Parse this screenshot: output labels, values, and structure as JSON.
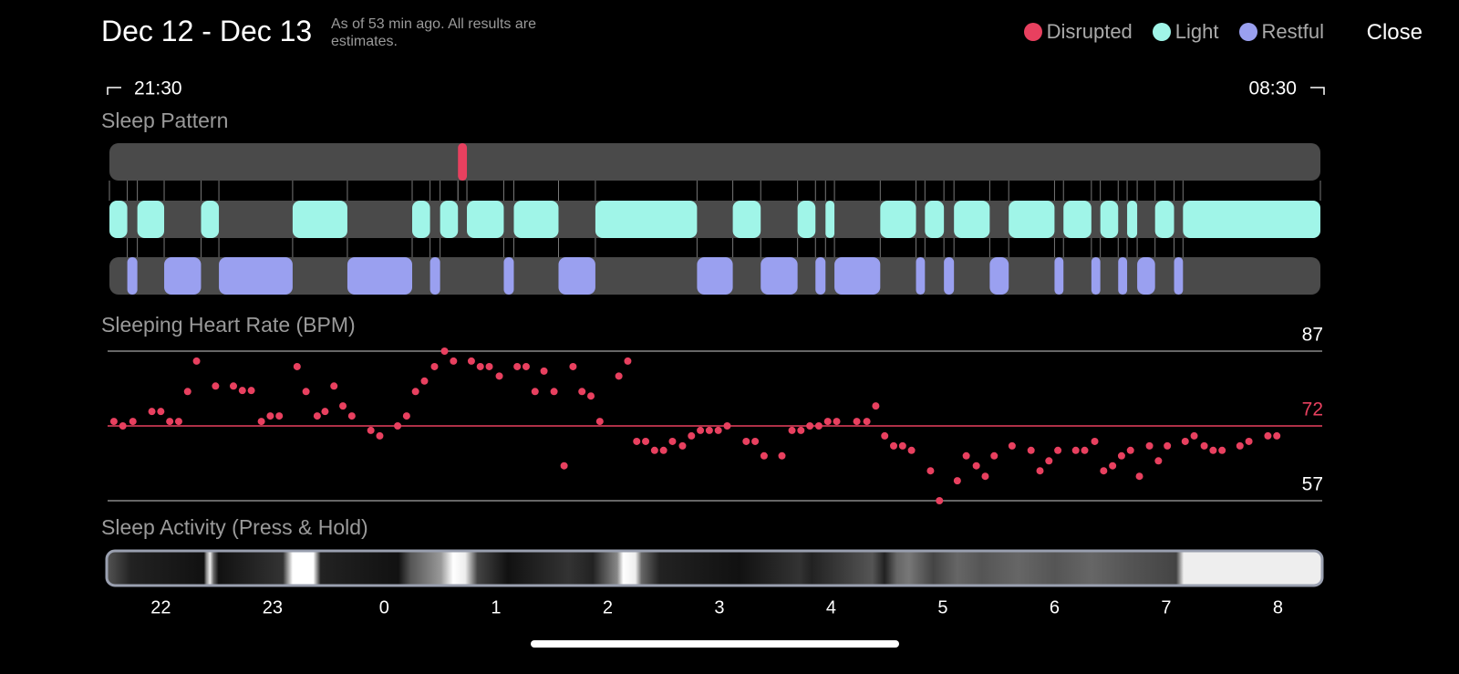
{
  "header": {
    "title": "Dec 12 - Dec 13",
    "subtitle": "As of 53 min ago. All results are estimates.",
    "close": "Close"
  },
  "time_range": {
    "start": "21:30",
    "end": "08:30"
  },
  "xlim": [
    21.54,
    32.38
  ],
  "xticks": [
    22,
    23,
    {
      "value": 24,
      "label": "0"
    },
    {
      "value": 25,
      "label": "1"
    },
    {
      "value": 26,
      "label": "2"
    },
    {
      "value": 27,
      "label": "3"
    },
    {
      "value": 28,
      "label": "4"
    },
    {
      "value": 29,
      "label": "5"
    },
    {
      "value": 30,
      "label": "6"
    },
    {
      "value": 31,
      "label": "7"
    },
    {
      "value": 32,
      "label": "8"
    }
  ],
  "sleep_pattern": {
    "title": "Sleep Pattern",
    "stages": [
      {
        "name": "Disrupted",
        "color": "#e8405f",
        "segments": [
          [
            24.66,
            24.74
          ]
        ]
      },
      {
        "name": "Light",
        "color": "#a0f5e8",
        "segments": [
          [
            21.54,
            21.7
          ],
          [
            21.79,
            22.03
          ],
          [
            22.36,
            22.52
          ],
          [
            23.18,
            23.67
          ],
          [
            24.25,
            24.41
          ],
          [
            24.5,
            24.66
          ],
          [
            24.74,
            25.07
          ],
          [
            25.16,
            25.56
          ],
          [
            25.89,
            26.8
          ],
          [
            27.12,
            27.37
          ],
          [
            27.7,
            27.86
          ],
          [
            27.95,
            28.03
          ],
          [
            28.44,
            28.76
          ],
          [
            28.84,
            29.01
          ],
          [
            29.1,
            29.42
          ],
          [
            29.59,
            30.0
          ],
          [
            30.08,
            30.33
          ],
          [
            30.41,
            30.57
          ],
          [
            30.65,
            30.74
          ],
          [
            30.9,
            31.07
          ],
          [
            31.15,
            32.38
          ]
        ]
      },
      {
        "name": "Restful",
        "color": "#9aa0f0",
        "segments": [
          [
            21.7,
            21.79
          ],
          [
            22.03,
            22.36
          ],
          [
            22.52,
            23.18
          ],
          [
            23.67,
            24.25
          ],
          [
            24.41,
            24.5
          ],
          [
            25.07,
            25.16
          ],
          [
            25.56,
            25.89
          ],
          [
            26.8,
            27.12
          ],
          [
            27.37,
            27.7
          ],
          [
            27.86,
            27.95
          ],
          [
            28.03,
            28.44
          ],
          [
            28.76,
            28.84
          ],
          [
            29.01,
            29.1
          ],
          [
            29.42,
            29.59
          ],
          [
            30.0,
            30.08
          ],
          [
            30.33,
            30.41
          ],
          [
            30.57,
            30.65
          ],
          [
            30.74,
            30.9
          ],
          [
            31.07,
            31.15
          ]
        ]
      }
    ]
  },
  "heart_rate": {
    "type": "scatter",
    "title": "Sleeping Heart Rate (BPM)",
    "color": "#e8405f",
    "ylim": [
      57,
      87
    ],
    "yticks": [
      57,
      87
    ],
    "average": 72,
    "average_color": "#e8405f",
    "x": [
      21.58,
      21.66,
      21.75,
      21.92,
      22.0,
      22.08,
      22.16,
      22.24,
      22.32,
      22.49,
      22.65,
      22.73,
      22.81,
      22.9,
      22.98,
      23.06,
      23.22,
      23.3,
      23.4,
      23.47,
      23.55,
      23.63,
      23.71,
      23.88,
      23.96,
      24.12,
      24.2,
      24.28,
      24.36,
      24.45,
      24.54,
      24.62,
      24.78,
      24.86,
      24.94,
      25.03,
      25.19,
      25.27,
      25.35,
      25.43,
      25.52,
      25.61,
      25.69,
      25.77,
      25.85,
      25.93,
      26.1,
      26.18,
      26.26,
      26.34,
      26.42,
      26.5,
      26.58,
      26.67,
      26.75,
      26.83,
      26.91,
      26.99,
      27.07,
      27.24,
      27.32,
      27.4,
      27.56,
      27.65,
      27.73,
      27.81,
      27.89,
      27.97,
      28.05,
      28.23,
      28.32,
      28.4,
      28.48,
      28.56,
      28.64,
      28.72,
      28.89,
      28.97,
      29.13,
      29.21,
      29.3,
      29.38,
      29.46,
      29.62,
      29.79,
      29.87,
      29.95,
      30.03,
      30.19,
      30.27,
      30.36,
      30.44,
      30.52,
      30.6,
      30.68,
      30.76,
      30.85,
      30.93,
      31.01,
      31.17,
      31.25,
      31.34,
      31.42,
      31.5,
      31.66,
      31.74,
      31.91,
      31.99
    ],
    "values": [
      72.9,
      72,
      72.9,
      74.9,
      74.9,
      72.9,
      72.9,
      78.9,
      85,
      80,
      80,
      79.1,
      79.1,
      72.9,
      74,
      74,
      83.9,
      78.9,
      74,
      74.9,
      80,
      76,
      74,
      71.1,
      70,
      72,
      74,
      78.9,
      81,
      83.9,
      87,
      85,
      85,
      83.9,
      83.9,
      82,
      83.9,
      83.9,
      78.9,
      83,
      78.9,
      64,
      83.9,
      78.9,
      78,
      72.9,
      82,
      85,
      68.9,
      68.9,
      67.1,
      67.1,
      68.9,
      68,
      70,
      71.1,
      71.1,
      71.1,
      72,
      68.9,
      68.9,
      66,
      66,
      71.1,
      71.1,
      72,
      72,
      72.9,
      72.9,
      72.9,
      72.9,
      76,
      70,
      68,
      68,
      67.1,
      63,
      57,
      61,
      66,
      64,
      61.9,
      66,
      68,
      67.1,
      63,
      65,
      67.1,
      67.1,
      67.1,
      68.9,
      63,
      64,
      66,
      67.1,
      61.9,
      68,
      65,
      68,
      68.9,
      70,
      68,
      67.1,
      67.1,
      68,
      68.9,
      70,
      70
    ]
  },
  "activity": {
    "title": "Sleep Activity (Press & Hold)"
  }
}
